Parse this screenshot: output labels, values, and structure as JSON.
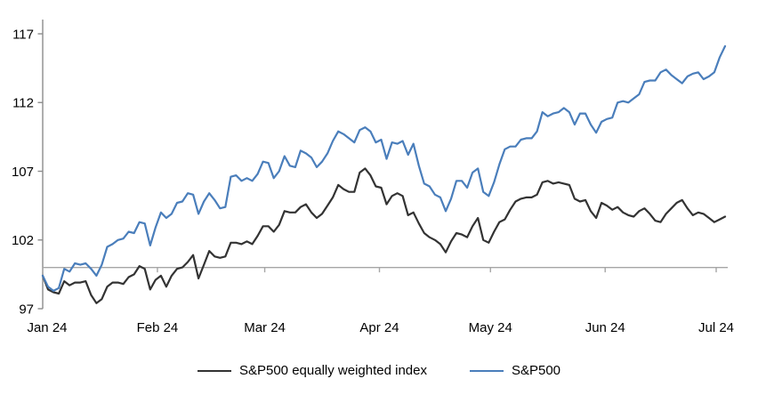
{
  "chart_data": {
    "type": "line",
    "title": "",
    "xlabel": "",
    "ylabel": "",
    "x_axis": {
      "tick_labels": [
        "Jan 24",
        "Feb 24",
        "Mar 24",
        "Apr 24",
        "May 24",
        "Jun 24",
        "Jul 24"
      ],
      "tick_day_offsets": [
        0,
        31,
        60,
        91,
        121,
        152,
        182
      ],
      "total_days": 182
    },
    "y_axis": {
      "tick_labels": [
        "97",
        "102",
        "107",
        "112",
        "117"
      ],
      "tick_values": [
        97,
        102,
        107,
        112,
        117
      ],
      "ylim": [
        97,
        117
      ],
      "baseline_value": 100
    },
    "grid": "baseline-only",
    "legend_position": "bottom-center",
    "series": [
      {
        "name": "S&P500 equally weighted index",
        "color": "#333333",
        "values": [
          99.4,
          98.4,
          98.2,
          98.1,
          99.0,
          98.7,
          98.9,
          98.9,
          99.0,
          98.0,
          97.4,
          97.7,
          98.6,
          98.9,
          98.9,
          98.8,
          99.3,
          99.5,
          100.1,
          99.9,
          98.4,
          99.1,
          99.4,
          98.6,
          99.4,
          99.9,
          100.0,
          100.4,
          100.9,
          99.2,
          100.2,
          101.2,
          100.8,
          100.7,
          100.8,
          101.8,
          101.8,
          101.7,
          101.9,
          101.7,
          102.3,
          103.0,
          103.0,
          102.6,
          103.1,
          104.1,
          104.0,
          104.0,
          104.4,
          104.6,
          104.0,
          103.6,
          103.9,
          104.5,
          105.1,
          106.0,
          105.7,
          105.5,
          105.5,
          106.9,
          107.2,
          106.7,
          105.9,
          105.8,
          104.6,
          105.2,
          105.4,
          105.2,
          103.8,
          104.0,
          103.2,
          102.5,
          102.2,
          102.0,
          101.7,
          101.1,
          101.9,
          102.5,
          102.4,
          102.2,
          103.0,
          103.6,
          102.0,
          101.8,
          102.6,
          103.3,
          103.5,
          104.2,
          104.8,
          105.0,
          105.1,
          105.1,
          105.3,
          106.2,
          106.3,
          106.1,
          106.2,
          106.1,
          106.0,
          105.0,
          104.8,
          104.9,
          104.1,
          103.6,
          104.7,
          104.5,
          104.2,
          104.4,
          104.0,
          103.8,
          103.7,
          104.1,
          104.3,
          103.9,
          103.4,
          103.3,
          103.9,
          104.3,
          104.7,
          104.9,
          104.3,
          103.8,
          104.0,
          103.9,
          103.6,
          103.3,
          103.5,
          103.7
        ]
      },
      {
        "name": "S&P500",
        "color": "#4a7ebb",
        "values": [
          99.4,
          98.6,
          98.3,
          98.5,
          99.9,
          99.7,
          100.3,
          100.2,
          100.3,
          99.9,
          99.4,
          100.2,
          101.5,
          101.7,
          102.0,
          102.1,
          102.6,
          102.5,
          103.3,
          103.2,
          101.6,
          102.9,
          104.0,
          103.6,
          103.9,
          104.7,
          104.8,
          105.4,
          105.3,
          103.9,
          104.8,
          105.4,
          104.9,
          104.3,
          104.4,
          106.6,
          106.7,
          106.3,
          106.5,
          106.3,
          106.8,
          107.7,
          107.6,
          106.5,
          107.0,
          108.1,
          107.4,
          107.3,
          108.5,
          108.3,
          108.0,
          107.3,
          107.7,
          108.3,
          109.2,
          109.9,
          109.7,
          109.4,
          109.1,
          110.0,
          110.2,
          109.9,
          109.1,
          109.3,
          107.9,
          109.1,
          109.0,
          109.2,
          108.2,
          109.0,
          107.4,
          106.1,
          105.9,
          105.3,
          105.1,
          104.1,
          105.0,
          106.3,
          106.3,
          105.8,
          106.9,
          107.2,
          105.5,
          105.2,
          106.2,
          107.5,
          108.6,
          108.8,
          108.8,
          109.3,
          109.4,
          109.4,
          109.9,
          111.3,
          111.0,
          111.2,
          111.3,
          111.6,
          111.3,
          110.4,
          111.2,
          111.2,
          110.4,
          109.8,
          110.6,
          110.8,
          110.9,
          112.0,
          112.1,
          112.0,
          112.3,
          112.6,
          113.5,
          113.6,
          113.6,
          114.2,
          114.4,
          114.0,
          113.7,
          113.4,
          113.9,
          114.1,
          114.2,
          113.7,
          113.9,
          114.2,
          115.3,
          116.1
        ]
      }
    ]
  },
  "colors": {
    "background": "#ffffff",
    "axis": "#8c8c8c",
    "baseline": "#a6a6a6",
    "text": "#000000"
  }
}
